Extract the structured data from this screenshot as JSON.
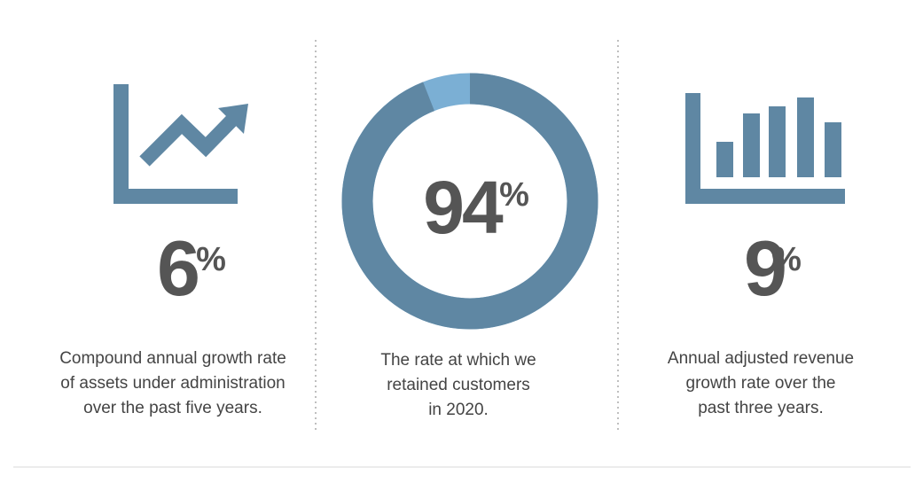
{
  "panels": [
    {
      "value": 6,
      "unit": "%",
      "lines": [
        "Compound annual growth rate",
        "of assets under administration",
        "over the past five years."
      ]
    },
    {
      "value": 94,
      "unit": "%",
      "lines": [
        "The rate at which we",
        "retained customers",
        "in 2020."
      ]
    },
    {
      "value": 9,
      "unit": "%",
      "lines": [
        "Annual adjusted revenue",
        "growth rate over the",
        "past three years."
      ]
    }
  ]
}
